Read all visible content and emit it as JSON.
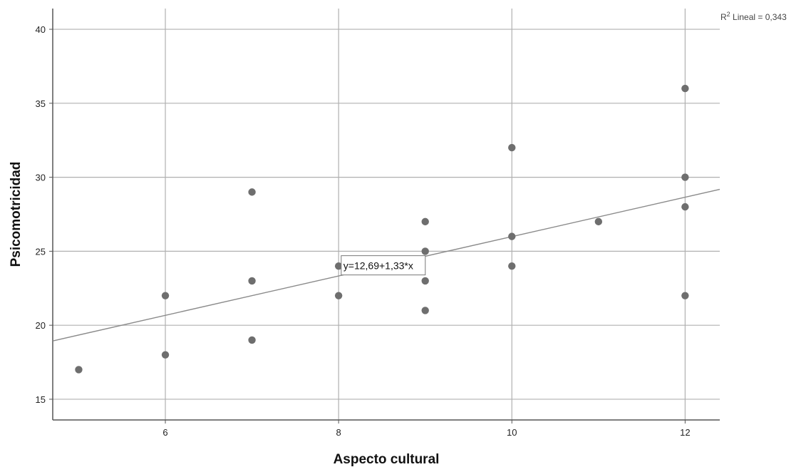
{
  "chart_data": {
    "type": "scatter",
    "title": "",
    "xlabel": "Aspecto cultural",
    "ylabel": "Psicomotricidad",
    "xlim": [
      4.7,
      12.4
    ],
    "ylim": [
      13.6,
      41.4
    ],
    "xticks": [
      6,
      8,
      10,
      12
    ],
    "yticks": [
      15,
      20,
      25,
      30,
      35,
      40
    ],
    "xtick_labels": [
      "6",
      "8",
      "10",
      "12"
    ],
    "ytick_labels": [
      "15",
      "20",
      "25",
      "30",
      "35",
      "40"
    ],
    "grid": true,
    "points": [
      {
        "x": 5,
        "y": 17
      },
      {
        "x": 6,
        "y": 22
      },
      {
        "x": 6,
        "y": 18
      },
      {
        "x": 7,
        "y": 29
      },
      {
        "x": 7,
        "y": 23
      },
      {
        "x": 7,
        "y": 19
      },
      {
        "x": 8,
        "y": 24
      },
      {
        "x": 8,
        "y": 22
      },
      {
        "x": 9,
        "y": 27
      },
      {
        "x": 9,
        "y": 25
      },
      {
        "x": 9,
        "y": 23
      },
      {
        "x": 9,
        "y": 21
      },
      {
        "x": 10,
        "y": 32
      },
      {
        "x": 10,
        "y": 26
      },
      {
        "x": 10,
        "y": 24
      },
      {
        "x": 11,
        "y": 27
      },
      {
        "x": 12,
        "y": 36
      },
      {
        "x": 12,
        "y": 30
      },
      {
        "x": 12,
        "y": 28
      },
      {
        "x": 12,
        "y": 22
      }
    ],
    "fit_line": {
      "intercept": 12.69,
      "slope": 1.33
    },
    "fit_equation_label": "y=12,69+1,33*x",
    "r2_label_prefix": "R",
    "r2_label_superscript": "2",
    "r2_label_suffix": " Lineal = 0,343",
    "colors": {
      "points": "#6e6e6e",
      "grid": "#b0b0b0",
      "axis": "#555555",
      "fit_line": "#8a8a8a"
    }
  }
}
